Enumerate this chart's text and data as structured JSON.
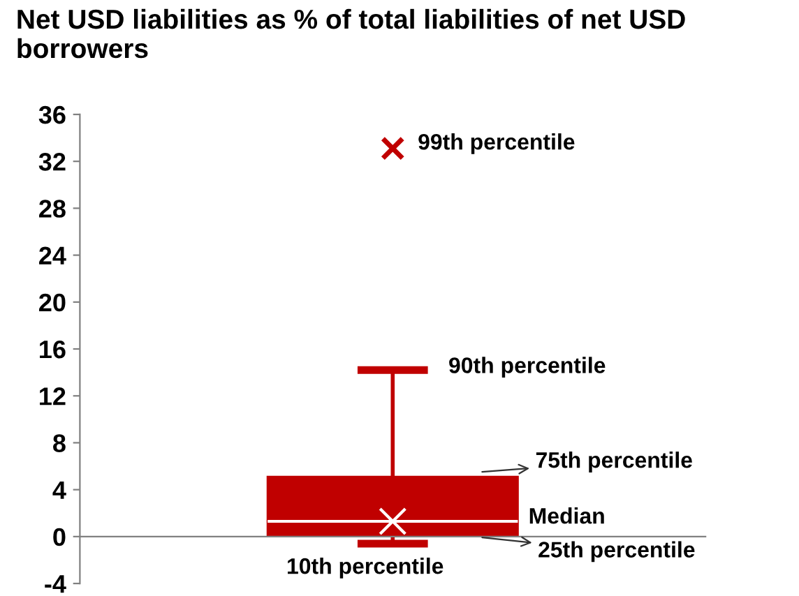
{
  "chart_data": {
    "type": "box",
    "title": "Net USD liabilities as % of total liabilities of net USD borrowers",
    "categories": [
      null
    ],
    "series": [
      {
        "color": "#c00000",
        "boxes": [
          {
            "low": -0.6,
            "q1": 0.1,
            "median": 1.3,
            "q3": 5.1,
            "high": 14.2,
            "mean": 1.3,
            "outliers": [
              33.1
            ]
          }
        ]
      }
    ],
    "ylim": [
      -4,
      36
    ],
    "yticks": [
      -4,
      0,
      4,
      8,
      12,
      16,
      20,
      24,
      28,
      32,
      36
    ],
    "annotations": [
      "99th percentile",
      "90th percentile",
      "75th percentile",
      "Median",
      "25th percentile",
      "10th percentile"
    ]
  }
}
